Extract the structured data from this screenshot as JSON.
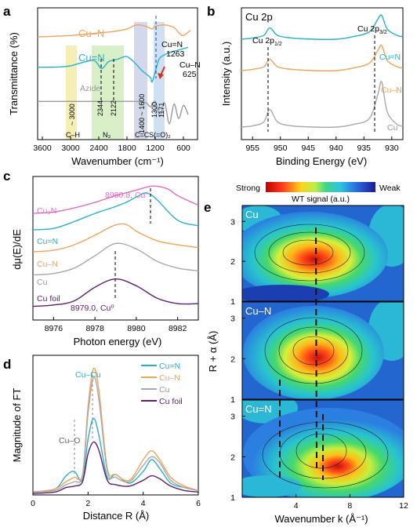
{
  "colors": {
    "cu_n_triple": "#2ab0c8",
    "cu_n_single": "#f0a35c",
    "cu": "#a9a9a9",
    "cu_foil": "#5a1f6e",
    "cu3n": "#dd6fc4",
    "axis": "#000000"
  },
  "panel_letters": [
    "a",
    "b",
    "c",
    "d",
    "e"
  ],
  "chart_data": [
    {
      "id": "a",
      "type": "line",
      "xlabel": "Wavenumber (cm⁻¹)",
      "ylabel": "Transmittance (%)",
      "xlim": [
        3700,
        300
      ],
      "xticks": [
        "3600",
        "3000",
        "2400",
        "1800",
        "1200",
        "600"
      ],
      "series": [
        {
          "name": "Cu–N",
          "color": "#f0a35c",
          "x": [
            3700,
            3000,
            2400,
            2100,
            1800,
            1600,
            1400,
            1263,
            1200,
            1000,
            800,
            625,
            450
          ],
          "y": [
            0.78,
            0.79,
            0.81,
            0.82,
            0.84,
            0.87,
            0.86,
            0.84,
            0.86,
            0.87,
            0.85,
            0.79,
            0.83
          ]
        },
        {
          "name": "Cu=N",
          "color": "#2ab0c8",
          "x": [
            3700,
            3300,
            3000,
            2800,
            2500,
            2344,
            2200,
            2122,
            2000,
            1800,
            1600,
            1500,
            1400,
            1300,
            1263,
            1171,
            1100,
            900,
            700,
            500
          ],
          "y": [
            0.55,
            0.55,
            0.56,
            0.58,
            0.6,
            0.54,
            0.59,
            0.6,
            0.61,
            0.63,
            0.57,
            0.53,
            0.5,
            0.47,
            0.44,
            0.55,
            0.62,
            0.66,
            0.68,
            0.7
          ]
        },
        {
          "name": "Azide",
          "color": "#9a9a9a",
          "x": [
            3700,
            3000,
            2400,
            2000,
            1600,
            1400,
            1300,
            1200,
            1100,
            1000,
            900,
            800,
            700,
            600,
            500
          ],
          "y": [
            0.29,
            0.29,
            0.29,
            0.29,
            0.29,
            0.28,
            0.25,
            0.29,
            0.18,
            0.28,
            0.12,
            0.27,
            0.16,
            0.26,
            0.19
          ]
        }
      ],
      "annotations": [
        "~ 3000",
        "2344",
        "2122",
        "1400 ~ 1600",
        "1300",
        "1171",
        "Cu=N 1263",
        "Cu–N 625",
        "C–H",
        "N₃",
        "C=C",
        "S(=O)₂"
      ]
    },
    {
      "id": "b",
      "type": "line",
      "title": "Cu 2p",
      "xlabel": "Binding Energy (eV)",
      "ylabel": "Intensity (a.u.)",
      "xlim": [
        957,
        928
      ],
      "xticks": [
        "955",
        "950",
        "945",
        "940",
        "935",
        "930"
      ],
      "peaks": [
        "Cu 2p1/2",
        "Cu 2p3/2"
      ],
      "series": [
        {
          "name": "Cu=N",
          "color": "#2ab0c8",
          "x": [
            957,
            955,
            953,
            951.9,
            950.5,
            948,
            944,
            940,
            937,
            934,
            932.5,
            931.8,
            930.8,
            929,
            928
          ],
          "y": [
            0.8,
            0.81,
            0.83,
            0.89,
            0.83,
            0.81,
            0.8,
            0.8,
            0.82,
            0.86,
            0.96,
            0.99,
            0.88,
            0.83,
            0.82
          ]
        },
        {
          "name": "Cu–N",
          "color": "#f0a35c",
          "x": [
            957,
            955,
            953,
            951.9,
            950.5,
            948,
            944,
            940,
            937,
            934,
            932.5,
            931.8,
            930.8,
            929,
            928
          ],
          "y": [
            0.55,
            0.56,
            0.58,
            0.64,
            0.58,
            0.56,
            0.55,
            0.55,
            0.57,
            0.61,
            0.71,
            0.75,
            0.63,
            0.58,
            0.57
          ]
        },
        {
          "name": "Cu",
          "color": "#a9a9a9",
          "x": [
            957,
            955,
            953,
            951.9,
            950.5,
            948,
            944,
            940,
            937,
            934,
            932.5,
            931.8,
            930.8,
            929,
            928
          ],
          "y": [
            0.1,
            0.11,
            0.14,
            0.24,
            0.14,
            0.11,
            0.1,
            0.1,
            0.12,
            0.17,
            0.36,
            0.46,
            0.22,
            0.12,
            0.11
          ]
        }
      ]
    },
    {
      "id": "c",
      "type": "line",
      "xlabel": "Photon energy (eV)",
      "ylabel": "dμ(E)/dE",
      "xlim": [
        8975,
        8983
      ],
      "xticks": [
        "8976",
        "8978",
        "8980",
        "8982"
      ],
      "annotations": [
        "8980.8, Cu⁺",
        "8979.0, Cu⁰"
      ],
      "series": [
        {
          "name": "Cu3N",
          "color": "#dd6fc4",
          "x": [
            8975,
            8976,
            8977,
            8978,
            8979,
            8980,
            8980.8,
            8981.5,
            8982,
            8983
          ],
          "y": [
            0.78,
            0.79,
            0.82,
            0.86,
            0.91,
            0.95,
            0.98,
            0.96,
            0.91,
            0.84
          ]
        },
        {
          "name": "Cu=N",
          "color": "#2ab0c8",
          "x": [
            8975,
            8976,
            8977,
            8978,
            8978.8,
            8979.5,
            8980,
            8980.5,
            8981,
            8982,
            8983
          ],
          "y": [
            0.66,
            0.67,
            0.72,
            0.78,
            0.82,
            0.86,
            0.9,
            0.93,
            0.88,
            0.73,
            0.69
          ]
        },
        {
          "name": "Cu–N",
          "color": "#f0a35c",
          "x": [
            8975,
            8976,
            8977,
            8978,
            8978.9,
            8979.5,
            8980,
            8981,
            8982,
            8983
          ],
          "y": [
            0.5,
            0.51,
            0.55,
            0.62,
            0.69,
            0.7,
            0.65,
            0.58,
            0.55,
            0.53
          ]
        },
        {
          "name": "Cu",
          "color": "#a9a9a9",
          "x": [
            8975,
            8976,
            8977,
            8978,
            8979,
            8980,
            8981,
            8982,
            8983
          ],
          "y": [
            0.33,
            0.34,
            0.38,
            0.47,
            0.56,
            0.52,
            0.43,
            0.38,
            0.36
          ]
        },
        {
          "name": "Cu foil",
          "color": "#5a1f6e",
          "x": [
            8975,
            8976,
            8977,
            8978,
            8979,
            8980,
            8981,
            8982,
            8983
          ],
          "y": [
            0.1,
            0.11,
            0.14,
            0.24,
            0.3,
            0.25,
            0.16,
            0.12,
            0.12
          ]
        }
      ]
    },
    {
      "id": "d",
      "type": "line",
      "xlabel": "Distance R (Å)",
      "ylabel": "Magnitude of FT",
      "xlim": [
        0,
        6
      ],
      "xticks": [
        "0",
        "2",
        "4",
        "6"
      ],
      "annotations": [
        "Cu–Cu",
        "Cu–O"
      ],
      "series": [
        {
          "name": "Cu=N",
          "color": "#2ab0c8",
          "x": [
            0,
            0.8,
            1.2,
            1.5,
            1.8,
            2.0,
            2.2,
            2.4,
            2.7,
            3.0,
            3.5,
            4.0,
            4.3,
            4.6,
            5.0,
            5.5,
            6.0
          ],
          "y": [
            0.02,
            0.04,
            0.13,
            0.16,
            0.1,
            0.38,
            0.52,
            0.4,
            0.12,
            0.14,
            0.08,
            0.16,
            0.24,
            0.18,
            0.08,
            0.05,
            0.03
          ]
        },
        {
          "name": "Cu–N",
          "color": "#f0a35c",
          "x": [
            0,
            0.8,
            1.2,
            1.5,
            1.8,
            2.0,
            2.2,
            2.4,
            2.7,
            3.0,
            3.5,
            4.0,
            4.3,
            4.6,
            5.0,
            5.5,
            6.0
          ],
          "y": [
            0.02,
            0.04,
            0.09,
            0.12,
            0.14,
            0.6,
            0.86,
            0.7,
            0.18,
            0.14,
            0.1,
            0.24,
            0.3,
            0.24,
            0.12,
            0.06,
            0.03
          ]
        },
        {
          "name": "Cu",
          "color": "#a9a9a9",
          "x": [
            0,
            0.8,
            1.2,
            1.5,
            1.8,
            2.0,
            2.2,
            2.4,
            2.7,
            3.0,
            3.5,
            4.0,
            4.3,
            4.6,
            5.0,
            5.5,
            6.0
          ],
          "y": [
            0.02,
            0.03,
            0.07,
            0.09,
            0.13,
            0.55,
            0.8,
            0.64,
            0.16,
            0.12,
            0.09,
            0.2,
            0.26,
            0.22,
            0.1,
            0.05,
            0.03
          ]
        },
        {
          "name": "Cu foil",
          "color": "#5a1f6e",
          "x": [
            0,
            0.8,
            1.2,
            1.5,
            1.8,
            2.0,
            2.2,
            2.4,
            2.7,
            3.0,
            3.5,
            4.0,
            4.3,
            4.6,
            5.0,
            5.5,
            6.0
          ],
          "y": [
            0.01,
            0.02,
            0.05,
            0.06,
            0.09,
            0.28,
            0.36,
            0.3,
            0.1,
            0.07,
            0.06,
            0.1,
            0.13,
            0.11,
            0.06,
            0.03,
            0.02
          ]
        }
      ]
    },
    {
      "id": "e",
      "type": "heatmap",
      "colorbar": {
        "title": "WT signal (a.u.)",
        "low": "Weak",
        "high": "Strong"
      },
      "xlabel": "Wavenumber k (Å⁻¹)",
      "ylabel": "R + α (Å)",
      "xlim": [
        0,
        12
      ],
      "xticks": [
        "4",
        "8",
        "12"
      ],
      "ylim": [
        1,
        3.4
      ],
      "yticks": [
        "1",
        "2",
        "3"
      ],
      "subplots": [
        {
          "name": "Cu",
          "peak_k": 6.5,
          "peak_R": 2.2
        },
        {
          "name": "Cu–N",
          "peak_k": 6.4,
          "peak_R": 2.25
        },
        {
          "name": "Cu=N",
          "peak_k": 6.8,
          "peak_R": 2.35
        }
      ]
    }
  ],
  "labels": {
    "a_azide": "Azide",
    "a_cuN_double": "Cu=N",
    "a_cuN_single": "Cu–N",
    "a_1263": "Cu=N",
    "a_1263b": "1263",
    "a_625": "Cu–N",
    "a_625b": "625",
    "a_ch": "C–H",
    "a_n3": "N₃",
    "a_cc": "C=C",
    "a_so2": "S(=O)₂",
    "a_3000": "~ 3000",
    "a_2344": "2344",
    "a_2122": "2122",
    "a_1400": "1400 ~ 1600",
    "a_1300": "1300",
    "a_1171": "1171",
    "b_title": "Cu 2p",
    "b_p12": "Cu 2p",
    "b_p12s": "1/2",
    "b_p32": "Cu 2p",
    "b_p32s": "3/2",
    "b_cuN_double": "Cu=N",
    "b_cuN_single": "Cu–N",
    "b_cu": "Cu",
    "c_cu3n": "Cu₃N",
    "c_cuN_double": "Cu=N",
    "c_cuN_single": "Cu–N",
    "c_cu": "Cu",
    "c_foil": "Cu foil",
    "c_ann1": "8980.8, Cu⁺",
    "c_ann2": "8979.0, Cu⁰",
    "d_cucu": "Cu–Cu",
    "d_cuo": "Cu–O",
    "d_leg": [
      "Cu=N",
      "Cu–N",
      "Cu",
      "Cu foil"
    ],
    "e_strong": "Strong",
    "e_weak": "Weak",
    "e_wt": "WT signal (a.u.)",
    "e_sub": [
      "Cu",
      "Cu–N",
      "Cu=N"
    ]
  }
}
